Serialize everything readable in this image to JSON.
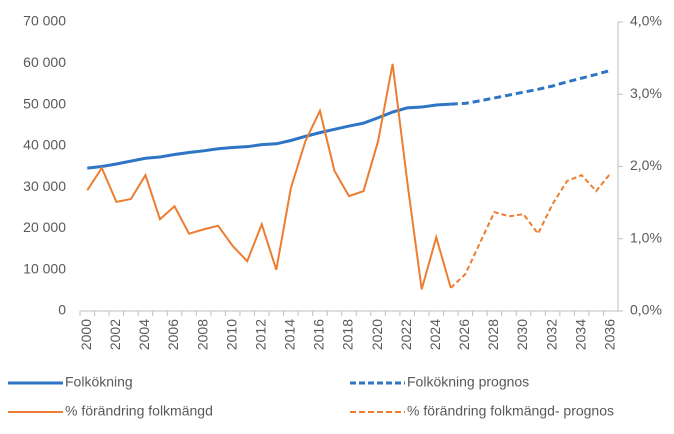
{
  "chart_data": {
    "type": "line",
    "categories": [
      "2000",
      null,
      "2002",
      null,
      "2004",
      null,
      "2006",
      null,
      "2008",
      null,
      "2010",
      null,
      "2012",
      null,
      "2014",
      null,
      "2016",
      null,
      "2018",
      null,
      "2020",
      null,
      "2022",
      null,
      "2024",
      null,
      "2026",
      null,
      "2028",
      null,
      "2030",
      null,
      "2032",
      null,
      "2034",
      null,
      "2036"
    ],
    "ylim": [
      0,
      70000
    ],
    "yticks": [
      0,
      {
        "value": 10000,
        "label": "10 000"
      },
      {
        "value": 20000,
        "label": "20 000"
      },
      {
        "value": 30000,
        "label": "30 000"
      },
      {
        "value": 40000,
        "label": "40 000"
      },
      {
        "value": 50000,
        "label": "50 000"
      },
      {
        "value": 60000,
        "label": "60 000"
      },
      {
        "value": 70000,
        "label": "70 000"
      }
    ],
    "y2lim": [
      0,
      4
    ],
    "y2ticks": [
      {
        "value": 0,
        "label": "0,0%"
      },
      {
        "value": 1,
        "label": "1,0%"
      },
      {
        "value": 2,
        "label": "2,0%"
      },
      {
        "value": 3,
        "label": "3,0%"
      },
      {
        "value": 4,
        "label": "4,0%"
      }
    ],
    "legend": "bottom",
    "series": [
      {
        "name": "Folkökning",
        "color": "#2e75c6",
        "style": "solid",
        "values": [
          34600,
          35000,
          35600,
          36300,
          37000,
          37300,
          37900,
          38400,
          38800,
          39300,
          39600,
          39800,
          40300,
          40500,
          41300,
          42300,
          43200,
          44000,
          44800,
          45500,
          46800,
          48200,
          49200,
          49400,
          49900,
          50100,
          null,
          null,
          null,
          null,
          null,
          null,
          null,
          null,
          null,
          null,
          null
        ]
      },
      {
        "name": "Folkökning prognos",
        "color": "#2e75c6",
        "style": "dashed",
        "values": [
          null,
          null,
          null,
          null,
          null,
          null,
          null,
          null,
          null,
          null,
          null,
          null,
          null,
          null,
          null,
          null,
          null,
          null,
          null,
          null,
          null,
          null,
          null,
          null,
          null,
          50100,
          50300,
          50900,
          51600,
          52300,
          53000,
          53700,
          54500,
          55500,
          56400,
          57300,
          58300
        ]
      },
      {
        "name": "% förändring folkmängd",
        "color": "#ed7d31",
        "style": "solid",
        "axis": "y2",
        "values": [
          1.67,
          1.98,
          1.51,
          1.55,
          1.88,
          1.27,
          1.45,
          1.07,
          1.13,
          1.18,
          0.9,
          0.69,
          1.2,
          0.57,
          1.7,
          2.35,
          2.77,
          1.94,
          1.59,
          1.66,
          2.35,
          3.42,
          1.8,
          0.3,
          1.02,
          0.32,
          null,
          null,
          null,
          null,
          null,
          null,
          null,
          null,
          null,
          null,
          null
        ]
      },
      {
        "name": "% förändring folkmängd- prognos",
        "color": "#ed7d31",
        "style": "dashed",
        "axis": "y2",
        "values": [
          null,
          null,
          null,
          null,
          null,
          null,
          null,
          null,
          null,
          null,
          null,
          null,
          null,
          null,
          null,
          null,
          null,
          null,
          null,
          null,
          null,
          null,
          null,
          null,
          null,
          0.32,
          0.51,
          0.94,
          1.37,
          1.31,
          1.34,
          1.07,
          1.48,
          1.8,
          1.88,
          1.66,
          1.91
        ]
      }
    ]
  }
}
